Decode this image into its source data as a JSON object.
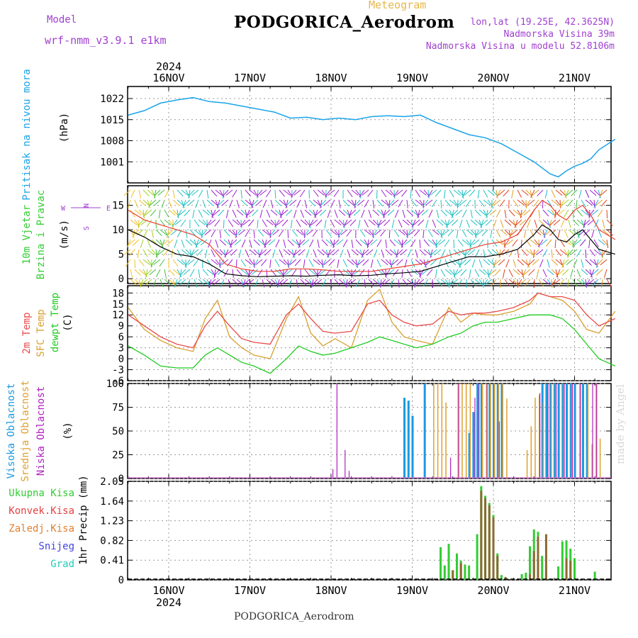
{
  "header": {
    "title": "PODGORICA_Aerodrom",
    "meteogram_label": "Meteogram",
    "model_label": "Model",
    "model_name": "wrf-nmm_v3.9.1  e1km",
    "coords": "lon,lat (19.25E, 42.3625N)",
    "elevation": "Nadmorska Visina 39m",
    "model_elevation": "Nadmorska Visina u modelu 52.8106m"
  },
  "footer": {
    "station": "PODGORICA_Aerodrom",
    "watermark": "made by Angel"
  },
  "colors": {
    "pressure": "#1aa4e8",
    "wind_black": "#000000",
    "gust": "#e84030",
    "temp2m": "#e84a4a",
    "sfc_temp": "#d8a030",
    "dewpoint": "#22cc22",
    "high_cloud": "#1a9ae0",
    "mid_cloud": "#e0a030",
    "low_cloud": "#b020c0",
    "precip_total": "#33cc33",
    "precip_conv": "#e84040",
    "precip_strat": "#e08030",
    "snow": "#4444dd",
    "graupel": "#22ccbb"
  },
  "chart_data": [
    {
      "type": "line",
      "panel": "pressure",
      "ylabel_lines": [
        "Pritisak na nivou mora",
        "(hPa)"
      ],
      "y_ticks": [
        "1022",
        "1015",
        "1008",
        "1001"
      ],
      "ylim": [
        994,
        1026
      ],
      "x_ticks": [
        "16NOV",
        "17NOV",
        "18NOV",
        "19NOV",
        "20NOV",
        "21NOV"
      ],
      "x_top_year": "2024",
      "x_bottom_year": "2024",
      "x": [
        -0.5,
        -0.3,
        -0.1,
        0.1,
        0.3,
        0.5,
        0.7,
        0.9,
        1.1,
        1.3,
        1.5,
        1.7,
        1.9,
        2.1,
        2.3,
        2.5,
        2.7,
        2.9,
        3.1,
        3.3,
        3.5,
        3.7,
        3.9,
        4.1,
        4.3,
        4.5,
        4.6,
        4.7,
        4.8,
        4.9,
        5.0,
        5.1,
        5.2,
        5.3,
        5.5
      ],
      "series": [
        {
          "values": [
            1016.5,
            1018,
            1020.5,
            1021.5,
            1022.3,
            1021,
            1020.5,
            1019.5,
            1018.5,
            1017.5,
            1015.5,
            1015.8,
            1015,
            1015.5,
            1015,
            1016,
            1016.3,
            1016,
            1016.5,
            1014,
            1012,
            1010,
            1009,
            1007,
            1004,
            1001,
            999,
            997,
            996,
            998,
            999.5,
            1000.5,
            1002,
            1005,
            1008.5
          ]
        }
      ]
    },
    {
      "type": "line",
      "panel": "wind",
      "ylabel_lines": [
        "10m Vjetar",
        "Brzina i Pravac",
        "(m/s)"
      ],
      "y_ticks": [
        "15",
        "10",
        "5",
        "0"
      ],
      "ylim": [
        -1,
        19
      ],
      "compass": [
        "N",
        "S",
        "W",
        "E"
      ],
      "x": [
        -0.5,
        -0.3,
        -0.1,
        0.1,
        0.3,
        0.5,
        0.7,
        0.9,
        1.1,
        1.3,
        1.5,
        1.7,
        1.9,
        2.1,
        2.3,
        2.5,
        2.7,
        2.9,
        3.1,
        3.3,
        3.5,
        3.7,
        3.9,
        4.1,
        4.3,
        4.5,
        4.6,
        4.7,
        4.8,
        4.9,
        5.0,
        5.1,
        5.2,
        5.3,
        5.5
      ],
      "series": [
        {
          "values": [
            10,
            8.5,
            6.5,
            5,
            4.5,
            3,
            1,
            0.6,
            0.4,
            0.5,
            0.6,
            0.5,
            0.7,
            0.8,
            0.6,
            0.7,
            1,
            1.2,
            1.5,
            2.5,
            3.5,
            4.5,
            4.5,
            5,
            6,
            9,
            11,
            10,
            8,
            7.5,
            9,
            10,
            8,
            6,
            5
          ]
        },
        {
          "values": [
            14,
            12,
            11,
            10,
            9,
            7,
            3,
            2,
            1.5,
            1.5,
            2,
            2,
            1.8,
            1.5,
            1.5,
            1.5,
            2,
            2.5,
            3,
            4,
            5,
            6,
            7,
            7.5,
            9,
            14,
            16,
            15,
            13,
            12,
            14,
            15,
            13,
            10,
            8
          ]
        }
      ]
    },
    {
      "type": "line",
      "panel": "temperature",
      "ylabel_lines": [
        "2m Temp",
        "SFC Temp",
        "dewpt Temp",
        "(C)"
      ],
      "y_ticks": [
        "18",
        "15",
        "12",
        "9",
        "6",
        "3",
        "0",
        "-3",
        "-6"
      ],
      "ylim": [
        -6,
        20
      ],
      "x": [
        -0.5,
        -0.3,
        -0.1,
        0.1,
        0.3,
        0.45,
        0.6,
        0.75,
        0.9,
        1.05,
        1.25,
        1.45,
        1.6,
        1.75,
        1.9,
        2.05,
        2.25,
        2.45,
        2.6,
        2.75,
        2.9,
        3.05,
        3.25,
        3.45,
        3.6,
        3.75,
        3.9,
        4.05,
        4.25,
        4.45,
        4.55,
        4.7,
        4.85,
        5.0,
        5.15,
        5.3,
        5.5
      ],
      "series": [
        {
          "name": "2m Temp",
          "values": [
            12,
            9,
            6,
            4,
            3,
            9,
            13,
            9,
            5.5,
            4.5,
            4,
            12,
            15,
            11,
            7.5,
            7,
            7.5,
            15,
            16,
            12,
            10,
            9,
            9.5,
            13,
            12,
            12.5,
            12.5,
            13,
            14,
            16,
            18,
            17,
            17,
            16,
            12,
            9,
            11
          ]
        },
        {
          "name": "SFC Temp",
          "values": [
            14,
            8,
            5,
            3,
            2,
            11,
            16,
            6,
            3,
            1,
            0,
            11,
            17,
            7,
            3.5,
            5.5,
            3,
            16,
            19,
            10,
            6,
            5,
            4,
            14,
            10,
            12.5,
            12,
            12,
            13,
            15,
            18,
            17,
            16,
            13,
            8,
            7,
            13
          ]
        },
        {
          "name": "dewpt Temp",
          "values": [
            3.5,
            1,
            -2,
            -2.5,
            -2.5,
            1,
            3,
            1,
            -1,
            -2,
            -4,
            0,
            3.5,
            2,
            1,
            1.5,
            3,
            4.5,
            6,
            5,
            4,
            3,
            4,
            6,
            7,
            9,
            10,
            10,
            11,
            12,
            12,
            12,
            11,
            8,
            4,
            0,
            -2
          ]
        }
      ]
    },
    {
      "type": "bar",
      "panel": "cloud",
      "ylabel_lines": [
        "Visoka Oblacnost",
        "Srednja Oblacnost",
        "Niska Oblacnost",
        "(%)"
      ],
      "y_ticks": [
        "100",
        "75",
        "50",
        "25",
        "0"
      ],
      "ylim": [
        0,
        100
      ],
      "series": [
        {
          "name": "Visoka Oblacnost",
          "x": [
            2.9,
            2.95,
            3.0,
            3.15,
            3.7,
            3.75,
            3.8,
            3.85,
            3.95,
            4.0,
            4.05,
            4.1,
            4.6,
            4.65,
            4.7,
            4.75,
            4.8,
            4.85,
            4.9,
            4.95,
            5.0,
            5.1,
            5.15
          ],
          "values": [
            85,
            82,
            66,
            100,
            48,
            70,
            100,
            100,
            100,
            100,
            100,
            100,
            100,
            100,
            100,
            100,
            100,
            100,
            100,
            100,
            100,
            100,
            100
          ]
        },
        {
          "name": "Srednja Oblacnost",
          "x": [
            3.25,
            3.3,
            3.35,
            3.4,
            3.55,
            3.6,
            3.65,
            3.7,
            3.85,
            3.9,
            3.95,
            4.0,
            4.05,
            4.1,
            4.15,
            4.4,
            4.45,
            4.5,
            4.55,
            4.6,
            4.7,
            4.75,
            4.85,
            4.95,
            5.05,
            5.15,
            5.2,
            5.25,
            5.3
          ],
          "values": [
            100,
            100,
            100,
            80,
            100,
            100,
            100,
            100,
            100,
            100,
            100,
            100,
            100,
            100,
            84,
            30,
            55,
            85,
            88,
            80,
            100,
            100,
            100,
            100,
            100,
            100,
            36,
            100,
            42
          ]
        },
        {
          "name": "Niska Oblacnost",
          "x": [
            2.0,
            2.05,
            2.15,
            2.2,
            3.45,
            3.55,
            3.75,
            3.8,
            3.9,
            4.05,
            4.55,
            4.65,
            4.75,
            4.85,
            4.95,
            5.05,
            5.2,
            5.25
          ],
          "values": [
            10,
            100,
            30,
            8,
            22,
            100,
            85,
            100,
            100,
            60,
            90,
            100,
            100,
            100,
            100,
            100,
            100,
            100
          ]
        }
      ]
    },
    {
      "type": "bar",
      "panel": "precip",
      "ylabel_lines": [
        "1hr Precip (mm)"
      ],
      "legend": [
        "Ukupna Kisa",
        "Konvek.Kisa",
        "Zaledj.Kisa",
        "Snijeg",
        "Grad"
      ],
      "y_ticks": [
        "2.05",
        "1.64",
        "1.23",
        "0.82",
        "0.41",
        "0"
      ],
      "ylim": [
        0,
        2.05
      ],
      "series": [
        {
          "name": "Ukupna Kisa",
          "x": [
            3.35,
            3.4,
            3.45,
            3.5,
            3.55,
            3.6,
            3.65,
            3.7,
            3.8,
            3.85,
            3.9,
            3.95,
            4.0,
            4.05,
            4.1,
            4.15,
            4.35,
            4.4,
            4.45,
            4.5,
            4.55,
            4.6,
            4.65,
            4.8,
            4.85,
            4.9,
            4.95,
            5.0,
            5.25
          ],
          "values": [
            0.68,
            0.3,
            0.75,
            0.2,
            0.55,
            0.4,
            0.32,
            0.3,
            0.95,
            1.95,
            1.75,
            1.6,
            1.35,
            0.55,
            0.1,
            0.05,
            0.12,
            0.15,
            0.7,
            1.05,
            1.0,
            0.5,
            0.2,
            0.28,
            0.8,
            0.82,
            0.65,
            0.45,
            0.17
          ]
        },
        {
          "name": "Konvek.Kisa",
          "x": [
            3.5,
            3.6,
            3.85,
            3.9,
            3.95,
            4.0,
            4.05,
            4.15,
            4.45,
            4.5,
            4.55,
            4.65,
            4.9,
            4.95
          ],
          "values": [
            0.2,
            0.35,
            1.85,
            1.7,
            1.55,
            1.3,
            0.5,
            0.06,
            0.12,
            0.6,
            0.9,
            0.95,
            0.45,
            0.4
          ]
        }
      ]
    }
  ]
}
